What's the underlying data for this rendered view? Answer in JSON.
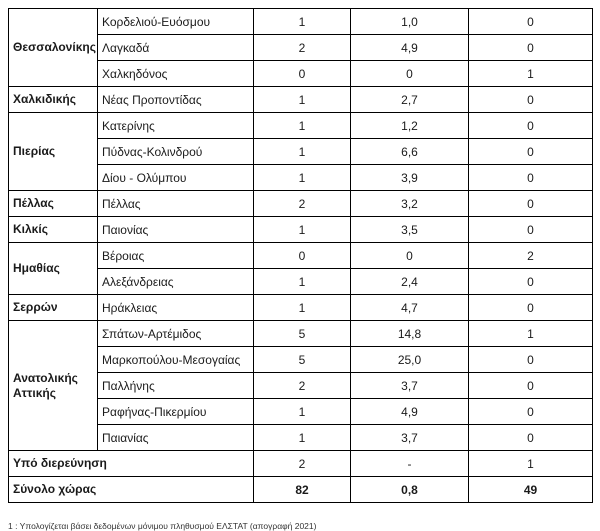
{
  "table": {
    "groups": [
      {
        "region": "Θεσσαλονίκης",
        "rows": [
          {
            "municipality": "Κορδελιού-Ευόσμου",
            "cases": "1",
            "incidence": "1,0",
            "deaths": "0"
          },
          {
            "municipality": "Λαγκαδά",
            "cases": "2",
            "incidence": "4,9",
            "deaths": "0"
          },
          {
            "municipality": "Χαλκηδόνος",
            "cases": "0",
            "incidence": "0",
            "deaths": "1"
          }
        ]
      },
      {
        "region": "Χαλκιδικής",
        "rows": [
          {
            "municipality": "Νέας Προποντίδας",
            "cases": "1",
            "incidence": "2,7",
            "deaths": "0"
          }
        ]
      },
      {
        "region": "Πιερίας",
        "rows": [
          {
            "municipality": "Κατερίνης",
            "cases": "1",
            "incidence": "1,2",
            "deaths": "0"
          },
          {
            "municipality": "Πύδνας-Κολινδρού",
            "cases": "1",
            "incidence": "6,6",
            "deaths": "0"
          },
          {
            "municipality": "Δίου - Ολύμπου",
            "cases": "1",
            "incidence": "3,9",
            "deaths": "0"
          }
        ]
      },
      {
        "region": "Πέλλας",
        "rows": [
          {
            "municipality": "Πέλλας",
            "cases": "2",
            "incidence": "3,2",
            "deaths": "0"
          }
        ]
      },
      {
        "region": "Κιλκίς",
        "rows": [
          {
            "municipality": "Παιονίας",
            "cases": "1",
            "incidence": "3,5",
            "deaths": "0"
          }
        ]
      },
      {
        "region": "Ημαθίας",
        "rows": [
          {
            "municipality": "Βέροιας",
            "cases": "0",
            "incidence": "0",
            "deaths": "2"
          },
          {
            "municipality": "Αλεξάνδρειας",
            "cases": "1",
            "incidence": "2,4",
            "deaths": "0"
          }
        ]
      },
      {
        "region": "Σερρών",
        "rows": [
          {
            "municipality": "Ηράκλειας",
            "cases": "1",
            "incidence": "4,7",
            "deaths": "0"
          }
        ]
      },
      {
        "region": "Ανατολικής Αττικής",
        "rows": [
          {
            "municipality": "Σπάτων-Αρτέμιδος",
            "cases": "5",
            "incidence": "14,8",
            "deaths": "1"
          },
          {
            "municipality": "Μαρκοπούλου-Μεσογαίας",
            "cases": "5",
            "incidence": "25,0",
            "deaths": "0"
          },
          {
            "municipality": "Παλλήνης",
            "cases": "2",
            "incidence": "3,7",
            "deaths": "0"
          },
          {
            "municipality": "Ραφήνας-Πικερμίου",
            "cases": "1",
            "incidence": "4,9",
            "deaths": "0"
          },
          {
            "municipality": "Παιανίας",
            "cases": "1",
            "incidence": "3,7",
            "deaths": "0"
          }
        ]
      }
    ],
    "summary_rows": [
      {
        "label": "Υπό διερεύνηση",
        "cases": "2",
        "incidence": "-",
        "deaths": "1",
        "bold_values": false
      },
      {
        "label": "Σύνολο χώρας",
        "cases": "82",
        "incidence": "0,8",
        "deaths": "49",
        "bold_values": true
      }
    ]
  },
  "page": {
    "caption": "1 : Υπολογίζεται βάσει δεδομένων μόνιμου πληθυσμού ΕΛΣΤΑΤ (απογραφή 2021)"
  }
}
